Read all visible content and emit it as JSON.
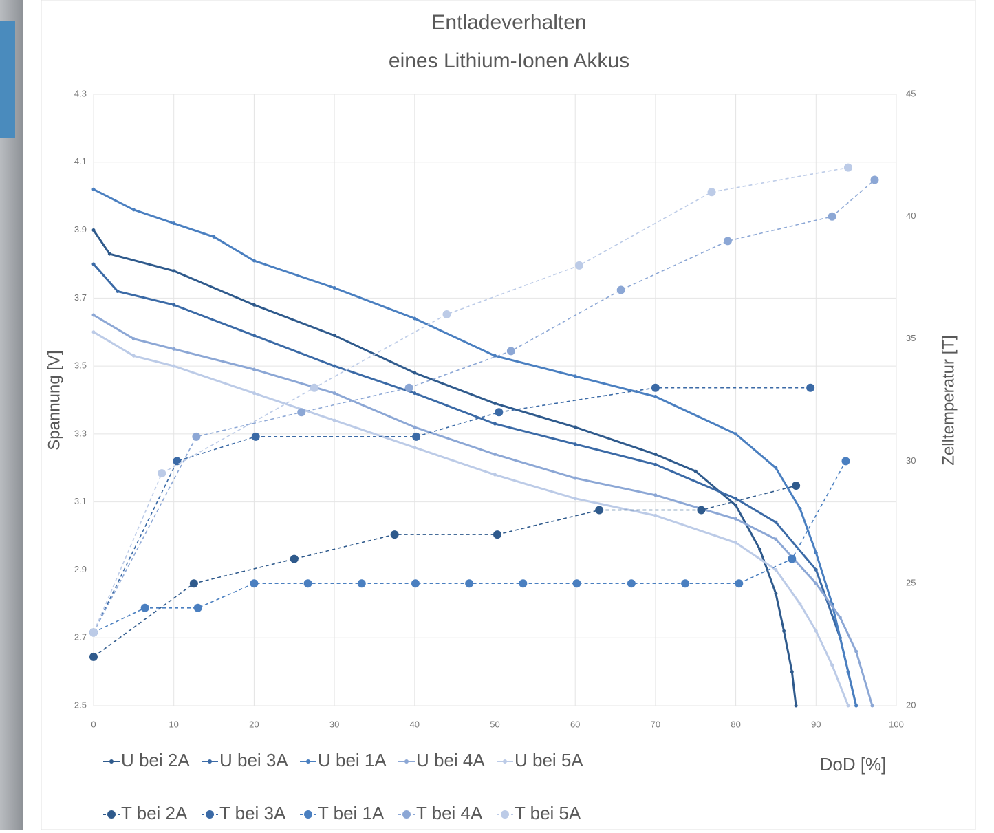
{
  "chart_data": {
    "type": "line",
    "title": "Entladeverhalten",
    "subtitle": "eines Lithium-Ionen Akkus",
    "x_label": "DoD [%]",
    "y_label": "Spannung [V]",
    "y2_label": "Zelltemperatur [T]",
    "xlim": [
      0,
      100
    ],
    "xticks": [
      0,
      10,
      20,
      30,
      40,
      50,
      60,
      70,
      80,
      90,
      100
    ],
    "ylim": [
      2.5,
      4.3
    ],
    "yticks": [
      2.5,
      2.7,
      2.9,
      3.1,
      3.3,
      3.5,
      3.7,
      3.9,
      4.1,
      4.3
    ],
    "y2lim": [
      20,
      45
    ],
    "y2ticks": [
      20,
      25,
      30,
      35,
      40,
      45
    ],
    "grid": true,
    "series": [
      {
        "name": "U bei 2A",
        "color": "#2f5a8c",
        "x": [
          0,
          2,
          10,
          20,
          30,
          40,
          50,
          60,
          70,
          75,
          80,
          83,
          85,
          86,
          87,
          87.5
        ],
        "values": [
          3.9,
          3.83,
          3.78,
          3.68,
          3.59,
          3.48,
          3.39,
          3.32,
          3.24,
          3.19,
          3.09,
          2.96,
          2.83,
          2.72,
          2.6,
          2.5
        ]
      },
      {
        "name": "U bei 3A",
        "color": "#3b6aa6",
        "x": [
          0,
          3,
          10,
          20,
          30,
          40,
          50,
          60,
          70,
          80,
          85,
          90,
          93,
          95
        ],
        "values": [
          3.8,
          3.72,
          3.68,
          3.59,
          3.5,
          3.42,
          3.33,
          3.27,
          3.21,
          3.11,
          3.04,
          2.9,
          2.7,
          2.5
        ]
      },
      {
        "name": "U bei 1A",
        "color": "#4a7fc0",
        "x": [
          0,
          5,
          10,
          15,
          20,
          30,
          40,
          50,
          60,
          70,
          80,
          85,
          88,
          90,
          92,
          94,
          95
        ],
        "values": [
          4.02,
          3.96,
          3.92,
          3.88,
          3.81,
          3.73,
          3.64,
          3.53,
          3.47,
          3.41,
          3.3,
          3.2,
          3.08,
          2.95,
          2.8,
          2.6,
          2.5
        ]
      },
      {
        "name": "U bei 4A",
        "color": "#8ca7d5",
        "x": [
          0,
          5,
          10,
          20,
          30,
          40,
          50,
          60,
          70,
          80,
          85,
          90,
          93,
          95,
          97
        ],
        "values": [
          3.65,
          3.58,
          3.55,
          3.49,
          3.42,
          3.32,
          3.24,
          3.17,
          3.12,
          3.05,
          2.99,
          2.86,
          2.76,
          2.66,
          2.5
        ]
      },
      {
        "name": "U bei 5A",
        "color": "#bccbe7",
        "x": [
          0,
          5,
          10,
          20,
          30,
          40,
          50,
          60,
          70,
          80,
          85,
          88,
          90,
          92,
          94
        ],
        "values": [
          3.6,
          3.53,
          3.5,
          3.42,
          3.34,
          3.26,
          3.18,
          3.11,
          3.06,
          2.98,
          2.9,
          2.8,
          2.72,
          2.62,
          2.5
        ]
      },
      {
        "name": "T bei 2A",
        "color": "#2f5a8c",
        "axis": "y2",
        "style": "dashed",
        "x": [
          0,
          12.5,
          25,
          37.5,
          50.3,
          63,
          75.7,
          87.5
        ],
        "values": [
          22,
          25,
          26,
          27,
          27,
          28,
          28,
          29
        ]
      },
      {
        "name": "T bei 3A",
        "color": "#3b6aa6",
        "axis": "y2",
        "style": "dashed",
        "x": [
          0,
          10.4,
          20.2,
          40.2,
          50.5,
          70,
          89.3
        ],
        "values": [
          23,
          30,
          31,
          31,
          32,
          33,
          33
        ]
      },
      {
        "name": "T bei 1A",
        "color": "#4a7fc0",
        "axis": "y2",
        "style": "dashed",
        "x": [
          0,
          6.4,
          13,
          20,
          26.7,
          33.4,
          40.1,
          46.8,
          53.5,
          60.2,
          67,
          73.7,
          80.4,
          87,
          93.7
        ],
        "values": [
          23,
          24,
          24,
          25,
          25,
          25,
          25,
          25,
          25,
          25,
          25,
          25,
          25,
          26,
          30
        ]
      },
      {
        "name": "T bei 4A",
        "color": "#8ca7d5",
        "axis": "y2",
        "style": "dashed",
        "x": [
          0,
          12.8,
          25.9,
          39.3,
          52,
          65.7,
          79,
          92,
          97.3
        ],
        "values": [
          23,
          31,
          32,
          33,
          34.5,
          37,
          39,
          40,
          41.5
        ]
      },
      {
        "name": "T bei 5A",
        "color": "#bccbe7",
        "axis": "y2",
        "style": "dashed",
        "x": [
          0,
          8.5,
          27.5,
          44,
          60.5,
          77,
          94
        ],
        "values": [
          23,
          29.5,
          33,
          36,
          38,
          41,
          42
        ]
      }
    ]
  }
}
